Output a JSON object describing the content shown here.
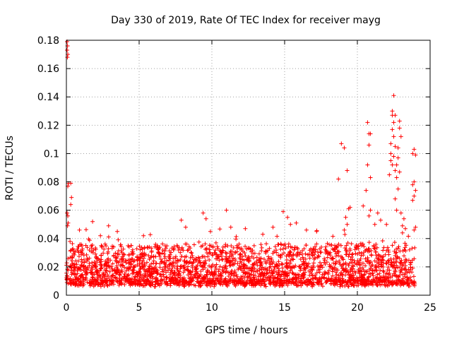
{
  "chart_data": {
    "type": "scatter",
    "title": "Day 330 of 2019, Rate Of TEC Index for receiver mayg",
    "xlabel": "GPS time / hours",
    "ylabel": "ROTI / TECUs",
    "xlim": [
      0,
      25
    ],
    "ylim": [
      0,
      0.18
    ],
    "x_ticks": [
      0,
      5,
      10,
      15,
      20,
      25
    ],
    "y_ticks": [
      0,
      0.02,
      0.04,
      0.06,
      0.08,
      0.1,
      0.12,
      0.14,
      0.16,
      0.18
    ],
    "x_tick_labels": [
      "0",
      "5",
      "10",
      "15",
      "20",
      "25"
    ],
    "y_tick_labels": [
      "0",
      "0.02",
      "0.04",
      "0.06",
      "0.08",
      "0.1",
      "0.12",
      "0.14",
      "0.16",
      "0.18"
    ],
    "grid": true,
    "marker": "+",
    "color": "#ff0000",
    "series": [
      {
        "points": [
          [
            0.05,
            0.179
          ],
          [
            0.08,
            0.176
          ],
          [
            0.05,
            0.173
          ],
          [
            0.1,
            0.17
          ],
          [
            0.07,
            0.168
          ],
          [
            0.15,
            0.079
          ],
          [
            0.1,
            0.077
          ],
          [
            0.3,
            0.079
          ],
          [
            0.35,
            0.069
          ],
          [
            0.05,
            0.058
          ],
          [
            0.1,
            0.056
          ],
          [
            0.12,
            0.051
          ],
          [
            0.08,
            0.049
          ],
          [
            0.3,
            0.064
          ],
          [
            0.9,
            0.046
          ],
          [
            1.8,
            0.052
          ],
          [
            2.9,
            0.049
          ],
          [
            3.5,
            0.045
          ],
          [
            5.3,
            0.042
          ],
          [
            7.9,
            0.053
          ],
          [
            8.2,
            0.048
          ],
          [
            9.4,
            0.058
          ],
          [
            9.6,
            0.054
          ],
          [
            9.9,
            0.045
          ],
          [
            11.0,
            0.06
          ],
          [
            11.3,
            0.048
          ],
          [
            12.3,
            0.047
          ],
          [
            13.5,
            0.043
          ],
          [
            14.2,
            0.048
          ],
          [
            14.9,
            0.059
          ],
          [
            15.2,
            0.055
          ],
          [
            15.4,
            0.05
          ],
          [
            15.8,
            0.051
          ],
          [
            16.5,
            0.046
          ],
          [
            17.2,
            0.045
          ],
          [
            18.7,
            0.082
          ],
          [
            18.9,
            0.107
          ],
          [
            19.1,
            0.104
          ],
          [
            19.3,
            0.088
          ],
          [
            19.4,
            0.061
          ],
          [
            19.5,
            0.062
          ],
          [
            19.2,
            0.055
          ],
          [
            19.3,
            0.05
          ],
          [
            19.1,
            0.046
          ],
          [
            20.4,
            0.063
          ],
          [
            20.6,
            0.074
          ],
          [
            20.7,
            0.092
          ],
          [
            20.8,
            0.106
          ],
          [
            20.8,
            0.114
          ],
          [
            20.7,
            0.122
          ],
          [
            20.9,
            0.114
          ],
          [
            20.9,
            0.083
          ],
          [
            20.9,
            0.06
          ],
          [
            20.8,
            0.056
          ],
          [
            21.4,
            0.058
          ],
          [
            21.6,
            0.053
          ],
          [
            21.2,
            0.05
          ],
          [
            22.0,
            0.05
          ],
          [
            22.2,
            0.085
          ],
          [
            22.3,
            0.095
          ],
          [
            22.3,
            0.1
          ],
          [
            22.3,
            0.107
          ],
          [
            22.4,
            0.117
          ],
          [
            22.4,
            0.127
          ],
          [
            22.4,
            0.13
          ],
          [
            22.5,
            0.141
          ],
          [
            22.6,
            0.127
          ],
          [
            22.5,
            0.122
          ],
          [
            22.5,
            0.112
          ],
          [
            22.6,
            0.105
          ],
          [
            22.5,
            0.098
          ],
          [
            22.4,
            0.092
          ],
          [
            22.6,
            0.088
          ],
          [
            22.7,
            0.083
          ],
          [
            22.8,
            0.075
          ],
          [
            22.9,
            0.123
          ],
          [
            22.9,
            0.118
          ],
          [
            23.0,
            0.112
          ],
          [
            22.8,
            0.104
          ],
          [
            22.8,
            0.097
          ],
          [
            22.7,
            0.092
          ],
          [
            22.9,
            0.087
          ],
          [
            22.6,
            0.068
          ],
          [
            22.7,
            0.06
          ],
          [
            23.0,
            0.058
          ],
          [
            23.2,
            0.054
          ],
          [
            23.1,
            0.049
          ],
          [
            23.3,
            0.047
          ],
          [
            23.1,
            0.044
          ],
          [
            23.9,
            0.103
          ],
          [
            23.8,
            0.1
          ],
          [
            24.0,
            0.099
          ],
          [
            23.9,
            0.08
          ],
          [
            23.8,
            0.078
          ],
          [
            24.0,
            0.074
          ],
          [
            23.9,
            0.07
          ],
          [
            23.8,
            0.067
          ],
          [
            24.0,
            0.048
          ],
          [
            23.9,
            0.046
          ]
        ]
      }
    ]
  }
}
